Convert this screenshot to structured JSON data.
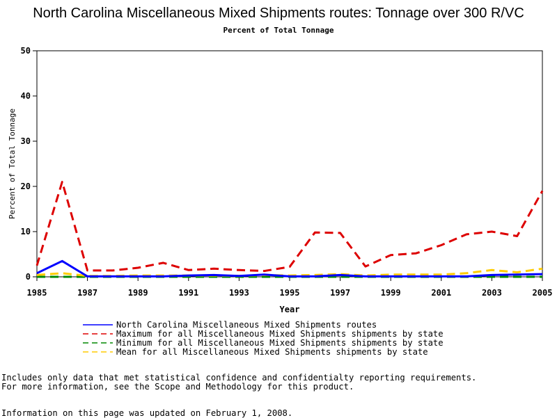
{
  "chart_data": {
    "type": "line",
    "title": "North Carolina Miscellaneous Mixed Shipments routes: Tonnage over 300 R/VC",
    "subtitle": "Percent of Total Tonnage",
    "xlabel": "Year",
    "ylabel": "Percent of Total Tonnage",
    "xlim": [
      1985,
      2005
    ],
    "ylim": [
      0,
      50
    ],
    "x_ticks": [
      1985,
      1987,
      1989,
      1991,
      1993,
      1995,
      1997,
      1999,
      2001,
      2003,
      2005
    ],
    "y_ticks": [
      0,
      10,
      20,
      30,
      40,
      50
    ],
    "grid": false,
    "legend_position": "bottom",
    "x": [
      1985,
      1986,
      1987,
      1988,
      1989,
      1990,
      1991,
      1992,
      1993,
      1994,
      1995,
      1996,
      1997,
      1998,
      1999,
      2000,
      2001,
      2002,
      2003,
      2004,
      2005
    ],
    "series": [
      {
        "name": "North Carolina Miscellaneous Mixed Shipments routes",
        "color": "#0000ff",
        "dash": "solid",
        "values": [
          0.8,
          3.5,
          0.1,
          0.1,
          0.1,
          0.1,
          0.3,
          0.4,
          0.2,
          0.5,
          0.1,
          0.1,
          0.4,
          0.1,
          0.1,
          0.1,
          0.1,
          0.1,
          0.4,
          0.5,
          0.6
        ]
      },
      {
        "name": "Maximum for all Miscellaneous Mixed Shipments shipments by state",
        "color": "#dd0000",
        "dash": "dashed",
        "values": [
          2.5,
          21.0,
          1.4,
          1.4,
          2.0,
          3.1,
          1.5,
          1.8,
          1.5,
          1.3,
          2.2,
          9.8,
          9.7,
          2.3,
          4.8,
          5.2,
          7.0,
          9.4,
          10.0,
          9.0,
          19.0
        ]
      },
      {
        "name": "Minimum for all Miscellaneous Mixed Shipments shipments by state",
        "color": "#008800",
        "dash": "dashed",
        "values": [
          0,
          0,
          0,
          0,
          0,
          0,
          0,
          0,
          0,
          0,
          0,
          0,
          0,
          0,
          0,
          0,
          0,
          0,
          0,
          0,
          0
        ]
      },
      {
        "name": "Mean for all Miscellaneous Mixed Shipments shipments by state",
        "color": "#ffcc00",
        "dash": "dashed",
        "values": [
          0.4,
          0.8,
          0.2,
          0.2,
          0.3,
          0.3,
          0.3,
          0.3,
          0.2,
          0.4,
          0.3,
          0.4,
          0.6,
          0.3,
          0.5,
          0.5,
          0.5,
          0.8,
          1.5,
          1.0,
          1.8
        ]
      }
    ]
  },
  "notes": {
    "line1": "Includes only data that met statistical confidence and confidentialty reporting requirements.",
    "line2": "For more information, see the Scope and Methodology for this product.",
    "line3": "Information on this page was updated on February 1, 2008."
  }
}
